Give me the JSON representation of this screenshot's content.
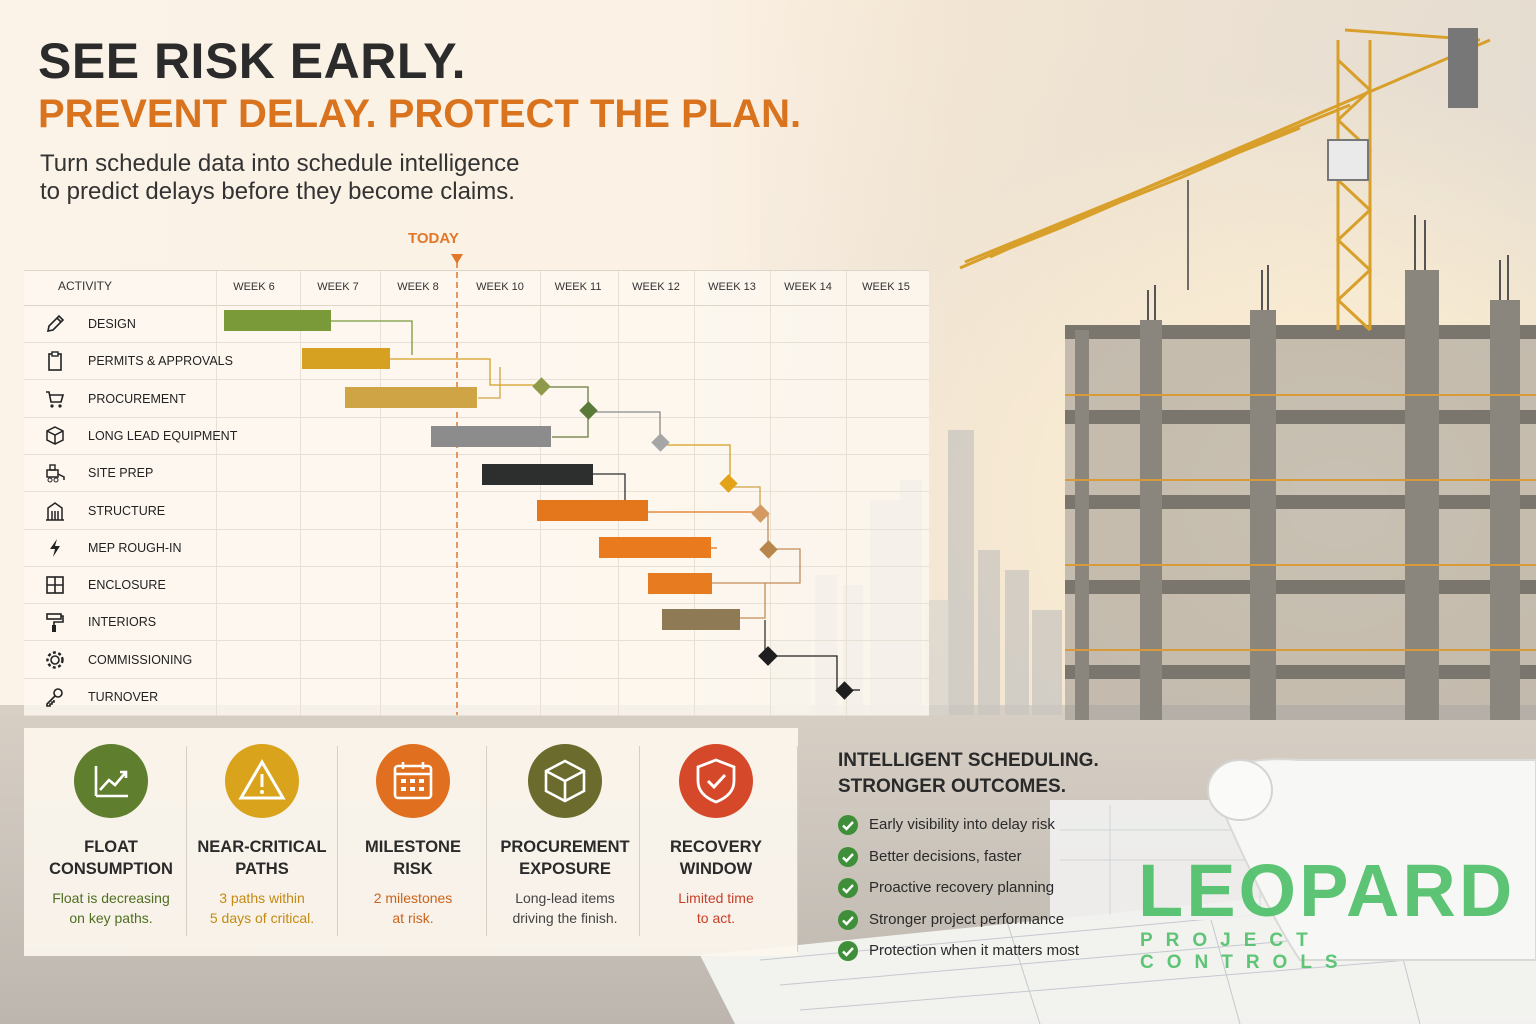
{
  "headline": {
    "line1": "SEE RISK EARLY.",
    "line2": "PREVENT DELAY. PROTECT THE PLAN.",
    "subtitle_line1": "Turn schedule data into schedule intelligence",
    "subtitle_line2": "to predict delays before they become claims."
  },
  "gantt": {
    "today_label": "TODAY",
    "activity_header": "ACTIVITY",
    "weeks": [
      "WEEK 6",
      "WEEK 7",
      "WEEK 8",
      "WEEK 10",
      "WEEK 11",
      "WEEK 12",
      "WEEK 13",
      "WEEK 14",
      "WEEK 15"
    ],
    "activities": [
      {
        "label": "DESIGN",
        "icon": "pencil-icon",
        "color": "#7a9a3a"
      },
      {
        "label": "PERMITS & APPROVALS",
        "icon": "clipboard-icon",
        "color": "#d6a020"
      },
      {
        "label": "PROCUREMENT",
        "icon": "cart-icon",
        "color": "#cfa445"
      },
      {
        "label": "LONG LEAD EQUIPMENT",
        "icon": "box-icon",
        "color": "#8c8c8c"
      },
      {
        "label": "SITE PREP",
        "icon": "loader-icon",
        "color": "#2d2f2f"
      },
      {
        "label": "STRUCTURE",
        "icon": "building-icon",
        "color": "#e4761c"
      },
      {
        "label": "MEP ROUGH-IN",
        "icon": "lightning-icon",
        "color": "#ea7a1e"
      },
      {
        "label": "ENCLOSURE",
        "icon": "window-icon",
        "color": "#e77b20"
      },
      {
        "label": "INTERIORS",
        "icon": "paint-roller-icon",
        "color": "#8e7a55"
      },
      {
        "label": "COMMISSIONING",
        "icon": "gear-icon",
        "color": "#222222"
      },
      {
        "label": "TURNOVER",
        "icon": "key-icon",
        "color": "#222222"
      }
    ]
  },
  "cards": [
    {
      "title1": "FLOAT",
      "title2": "CONSUMPTION",
      "desc1": "Float is decreasing",
      "desc2": "on key paths.",
      "icon": "trend-chart-icon",
      "color": "#5f7f2e",
      "desc_color": "#4f6f20"
    },
    {
      "title1": "NEAR-CRITICAL",
      "title2": "PATHS",
      "desc1": "3 paths within",
      "desc2": "5 days of critical.",
      "icon": "warning-icon",
      "color": "#d9a31c",
      "desc_color": "#c48a12"
    },
    {
      "title1": "MILESTONE",
      "title2": "RISK",
      "desc1": "2 milestones",
      "desc2": "at risk.",
      "icon": "calendar-icon",
      "color": "#e0701f",
      "desc_color": "#c9641c"
    },
    {
      "title1": "PROCUREMENT",
      "title2": "EXPOSURE",
      "desc1": "Long-lead items",
      "desc2": "driving the finish.",
      "icon": "package-icon",
      "color": "#6a6b2c",
      "desc_color": "#444444"
    },
    {
      "title1": "RECOVERY",
      "title2": "WINDOW",
      "desc1": "Limited time",
      "desc2": "to act.",
      "icon": "shield-check-icon",
      "color": "#d6482a",
      "desc_color": "#c7402a"
    }
  ],
  "outcomes": {
    "title1": "INTELLIGENT SCHEDULING.",
    "title2": "STRONGER OUTCOMES.",
    "items": [
      "Early visibility into delay risk",
      "Better decisions, faster",
      "Proactive recovery planning",
      "Stronger project performance",
      "Protection when it matters most"
    ]
  },
  "logo": {
    "name": "LEOPARD",
    "tagline": "PROJECT CONTROLS",
    "color": "#4fc06a"
  }
}
